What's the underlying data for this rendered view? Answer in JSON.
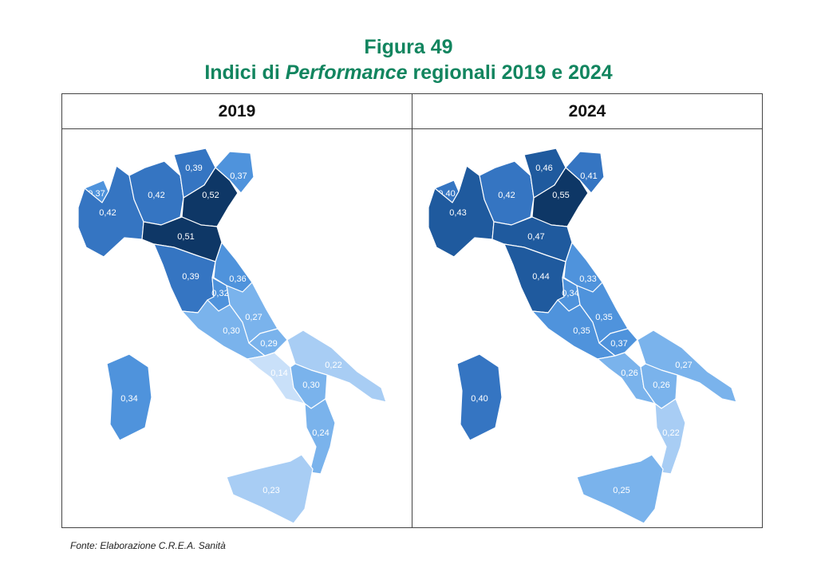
{
  "figure": {
    "number": "Figura 49",
    "title_prefix": "Indici di ",
    "title_italic": "Performance",
    "title_suffix": " regionali 2019 e 2024"
  },
  "panels": [
    {
      "year": "2019",
      "regions": {
        "valle_aosta": "0,37",
        "piemonte": "0,42",
        "lombardia": "0,42",
        "trentino": "0,39",
        "veneto": "0,52",
        "friuli": "0,37",
        "emilia": "0,51",
        "toscana": "0,39",
        "marche": "0,36",
        "umbria": "0,32",
        "lazio": "0,30",
        "abruzzo": "0,27",
        "molise": "0,29",
        "campania": "0,14",
        "puglia": "0,22",
        "basilicata": "0,30",
        "calabria": "0,24",
        "sicilia": "0,23",
        "sardegna": "0,34"
      }
    },
    {
      "year": "2024",
      "regions": {
        "valle_aosta": "0,40",
        "piemonte": "0,43",
        "lombardia": "0,42",
        "trentino": "0,46",
        "veneto": "0,55",
        "friuli": "0,41",
        "emilia": "0,47",
        "toscana": "0,44",
        "marche": "0,33",
        "umbria": "0,34",
        "lazio": "0,35",
        "abruzzo": "0,35",
        "molise": "0,37",
        "campania": "0,26",
        "puglia": "0,27",
        "basilicata": "0,26",
        "calabria": "0,22",
        "sicilia": "0,25",
        "sardegna": "0,40"
      }
    }
  ],
  "colors": {
    "title": "#12855f",
    "scale": [
      "#c9e0f9",
      "#a8cdf4",
      "#7ab3ec",
      "#4f93dc",
      "#3575c2",
      "#1f5a9e",
      "#0e3766"
    ]
  },
  "source": "Fonte: Elaborazione C.R.E.A. Sanità"
}
